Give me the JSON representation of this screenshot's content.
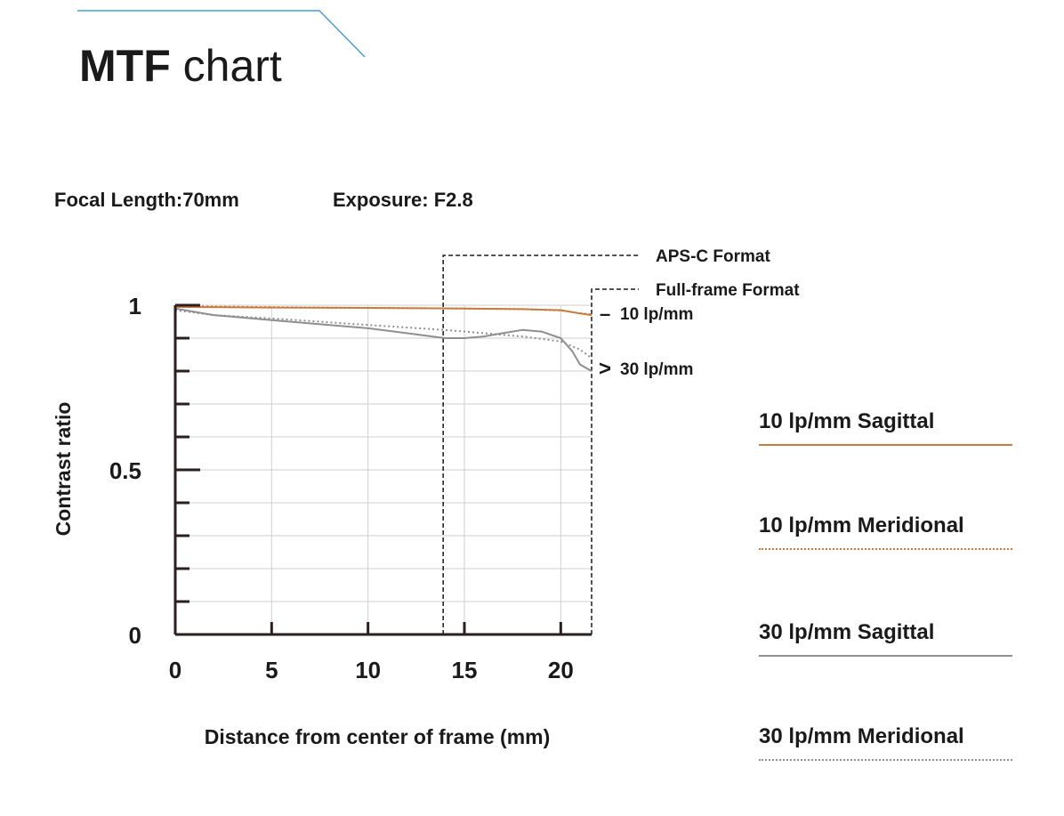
{
  "header": {
    "title_bold": "MTF",
    "title_rest": "chart",
    "focal_length": "Focal Length:70mm",
    "exposure": "Exposure: F2.8"
  },
  "colors": {
    "accent_line": "#4a9fd0",
    "orange": "#c97b3f",
    "gray": "#8f8f8f",
    "axis": "#2b1f1f",
    "grid": "#cfcfcf"
  },
  "chart_data": {
    "type": "line",
    "xlabel": "Distance from center of frame (mm)",
    "ylabel": "Contrast ratio",
    "xlim": [
      0,
      21.6
    ],
    "ylim": [
      0,
      1
    ],
    "x_ticks": [
      "0",
      "5",
      "10",
      "15",
      "20"
    ],
    "x_tick_values": [
      0,
      5,
      10,
      15,
      20
    ],
    "y_ticks": [
      "0",
      "0.5",
      "1"
    ],
    "y_tick_values": [
      0,
      0.5,
      1
    ],
    "grid": true,
    "series": [
      {
        "name": "10 lp/mm Sagittal",
        "color": "#c97b3f",
        "dash": "solid",
        "x": [
          0,
          5,
          10,
          15,
          18,
          20,
          21,
          21.6
        ],
        "y": [
          0.995,
          0.993,
          0.992,
          0.99,
          0.988,
          0.985,
          0.975,
          0.97
        ]
      },
      {
        "name": "10 lp/mm Meridional",
        "color": "#c97b3f",
        "dash": "dotted",
        "x": [
          0,
          5,
          10,
          15,
          18,
          20,
          21,
          21.6
        ],
        "y": [
          0.997,
          0.994,
          0.992,
          0.99,
          0.988,
          0.984,
          0.976,
          0.972
        ]
      },
      {
        "name": "30 lp/mm Sagittal",
        "color": "#8f8f8f",
        "dash": "solid",
        "x": [
          0,
          2,
          5,
          8,
          10,
          12,
          14,
          15,
          16,
          17,
          18,
          19,
          20,
          20.6,
          21,
          21.6
        ],
        "y": [
          0.99,
          0.97,
          0.955,
          0.94,
          0.93,
          0.915,
          0.9,
          0.9,
          0.905,
          0.915,
          0.925,
          0.92,
          0.9,
          0.86,
          0.82,
          0.8
        ]
      },
      {
        "name": "30 lp/mm Meridional",
        "color": "#8f8f8f",
        "dash": "dotted",
        "x": [
          0,
          2,
          5,
          10,
          14,
          16,
          18,
          20,
          21,
          21.6
        ],
        "y": [
          0.985,
          0.97,
          0.96,
          0.94,
          0.925,
          0.915,
          0.905,
          0.89,
          0.865,
          0.84
        ]
      }
    ],
    "annotations": {
      "apsc_label": "APS-C Format",
      "apsc_x": 13.9,
      "fullframe_label": "Full-frame Format",
      "fullframe_x": 21.6,
      "label_10": "10 lp/mm",
      "label_10_marker": "–",
      "label_30": "30 lp/mm",
      "label_30_marker": ">"
    }
  },
  "legend": [
    {
      "label": "10 lp/mm Sagittal",
      "color": "#c97b3f",
      "dash": "solid"
    },
    {
      "label": "10 lp/mm Meridional",
      "color": "#c97b3f",
      "dash": "dotted"
    },
    {
      "label": "30 lp/mm Sagittal",
      "color": "#8f8f8f",
      "dash": "solid"
    },
    {
      "label": "30 lp/mm Meridional",
      "color": "#8f8f8f",
      "dash": "dotted"
    }
  ]
}
